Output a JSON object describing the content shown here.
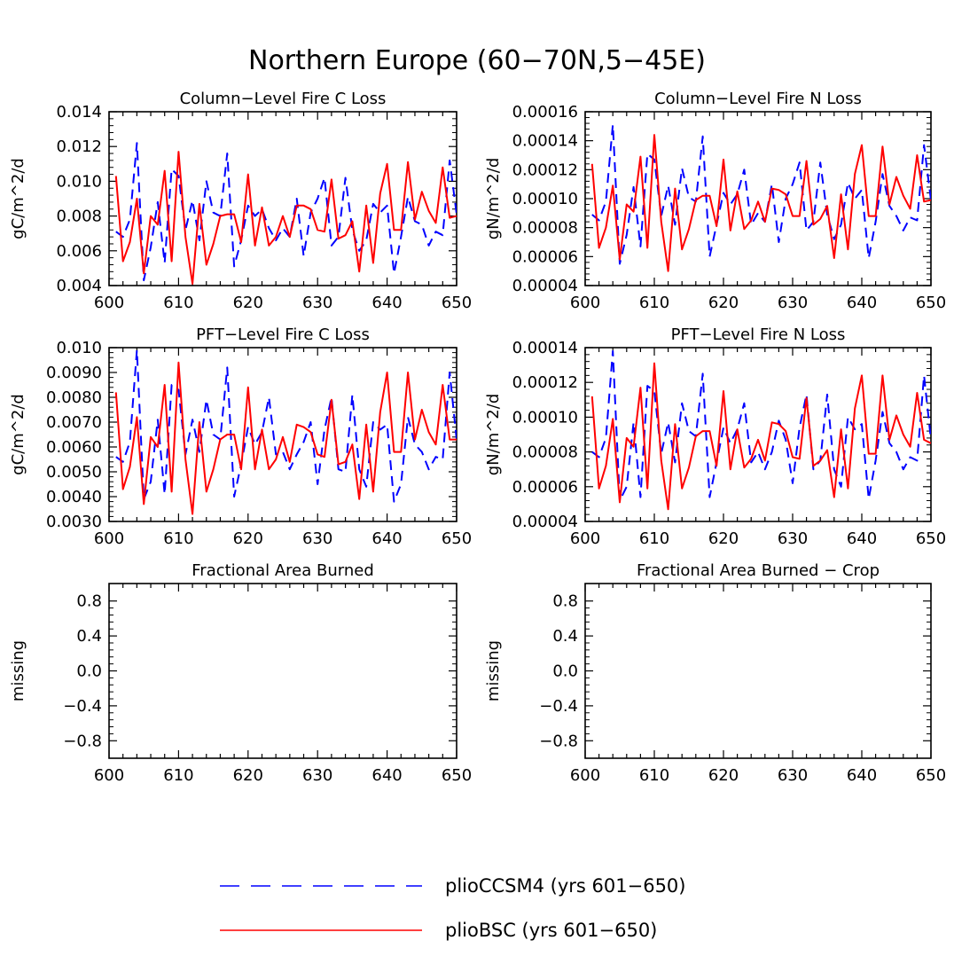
{
  "figure": {
    "title": "Northern Europe (60−70N,5−45E)"
  },
  "series_styles": [
    {
      "name": "plioCCSM4 (yrs 601−650)",
      "color": "#0000ff",
      "dash": "dashed"
    },
    {
      "name": "plioBSC (yrs 601−650)",
      "color": "#ff0000",
      "dash": "solid"
    }
  ],
  "chart_data": [
    {
      "type": "line",
      "title": "Column−Level Fire C Loss",
      "ylabel": "gC/m^2/d",
      "xlim": [
        600,
        650
      ],
      "ylim": [
        0.004,
        0.014
      ],
      "xticks": [
        600,
        610,
        620,
        630,
        640,
        650
      ],
      "yticks": [
        0.004,
        0.006,
        0.008,
        0.01,
        0.012,
        0.014
      ],
      "ytick_labels": [
        "0.004",
        "0.006",
        "0.008",
        "0.010",
        "0.012",
        "0.014"
      ],
      "x": [
        601,
        602,
        603,
        604,
        605,
        606,
        607,
        608,
        609,
        610,
        611,
        612,
        613,
        614,
        615,
        616,
        617,
        618,
        619,
        620,
        621,
        622,
        623,
        624,
        625,
        626,
        627,
        628,
        629,
        630,
        631,
        632,
        633,
        634,
        635,
        636,
        637,
        638,
        639,
        640,
        641,
        642,
        643,
        644,
        645,
        646,
        647,
        648,
        649,
        650
      ],
      "series": [
        {
          "name": "plioCCSM4 (yrs 601−650)",
          "values": [
            0.0071,
            0.0068,
            0.0078,
            0.0122,
            0.0043,
            0.0062,
            0.0088,
            0.0053,
            0.0107,
            0.0103,
            0.0072,
            0.0089,
            0.0066,
            0.01,
            0.0082,
            0.008,
            0.0116,
            0.0051,
            0.0066,
            0.0086,
            0.008,
            0.0084,
            0.0073,
            0.0066,
            0.0073,
            0.0068,
            0.009,
            0.0057,
            0.0082,
            0.009,
            0.0102,
            0.0063,
            0.0068,
            0.0102,
            0.0072,
            0.006,
            0.0066,
            0.0087,
            0.0082,
            0.0086,
            0.0047,
            0.0068,
            0.0091,
            0.0077,
            0.0075,
            0.0063,
            0.0071,
            0.0069,
            0.0112,
            0.0081
          ]
        },
        {
          "name": "plioBSC (yrs 601−650)",
          "values": [
            0.0103,
            0.0054,
            0.0065,
            0.009,
            0.0047,
            0.008,
            0.0075,
            0.0106,
            0.0054,
            0.0117,
            0.0068,
            0.0041,
            0.0087,
            0.0052,
            0.0064,
            0.008,
            0.0081,
            0.0081,
            0.0065,
            0.0104,
            0.0063,
            0.0085,
            0.0063,
            0.0068,
            0.008,
            0.0068,
            0.0086,
            0.0086,
            0.0084,
            0.0072,
            0.0071,
            0.0101,
            0.0067,
            0.0069,
            0.0077,
            0.0048,
            0.0086,
            0.0053,
            0.0093,
            0.011,
            0.0072,
            0.0072,
            0.0111,
            0.0078,
            0.0094,
            0.0083,
            0.0076,
            0.0108,
            0.0079,
            0.008
          ]
        }
      ]
    },
    {
      "type": "line",
      "title": "Column−Level Fire N Loss",
      "ylabel": "gN/m^2/d",
      "xlim": [
        600,
        650
      ],
      "ylim": [
        4e-05,
        0.00016
      ],
      "xticks": [
        600,
        610,
        620,
        630,
        640,
        650
      ],
      "yticks": [
        4e-05,
        6e-05,
        8e-05,
        0.0001,
        0.00012,
        0.00014,
        0.00016
      ],
      "ytick_labels": [
        "0.00004",
        "0.00006",
        "0.00008",
        "0.00010",
        "0.00012",
        "0.00014",
        "0.00016"
      ],
      "x": [
        601,
        602,
        603,
        604,
        605,
        606,
        607,
        608,
        609,
        610,
        611,
        612,
        613,
        614,
        615,
        616,
        617,
        618,
        619,
        620,
        621,
        622,
        623,
        624,
        625,
        626,
        627,
        628,
        629,
        630,
        631,
        632,
        633,
        634,
        635,
        636,
        637,
        638,
        639,
        640,
        641,
        642,
        643,
        644,
        645,
        646,
        647,
        648,
        649,
        650
      ],
      "series": [
        {
          "name": "plioCCSM4 (yrs 601−650)",
          "values": [
            8.9e-05,
            8.5e-05,
            9.8e-05,
            0.000151,
            5.5e-05,
            7.5e-05,
            0.000108,
            6.7e-05,
            0.000131,
            0.000127,
            8.8e-05,
            0.000109,
            8.2e-05,
            0.000121,
            0.000101,
            9.8e-05,
            0.000143,
            6e-05,
            8.2e-05,
            0.000104,
            9.6e-05,
            0.000103,
            0.00012,
            8.2e-05,
            9e-05,
            8.4e-05,
            0.00011,
            7e-05,
            0.0001,
            0.00011,
            0.000125,
            7.8e-05,
            8.4e-05,
            0.000125,
            8.9e-05,
            7.2e-05,
            8.2e-05,
            0.000111,
            0.0001,
            0.000106,
            5.9e-05,
            8.4e-05,
            0.000117,
            9.5e-05,
            8.8e-05,
            7.8e-05,
            8.7e-05,
            8.5e-05,
            0.000137,
            9.9e-05
          ]
        },
        {
          "name": "plioBSC (yrs 601−650)",
          "values": [
            0.000124,
            6.6e-05,
            8e-05,
            0.000109,
            5.8e-05,
            9.6e-05,
            9.1e-05,
            0.000129,
            6.6e-05,
            0.000144,
            8.4e-05,
            5e-05,
            0.000107,
            6.5e-05,
            7.9e-05,
            9.9e-05,
            0.000102,
            0.000102,
            8.1e-05,
            0.000127,
            7.8e-05,
            0.000105,
            7.9e-05,
            8.5e-05,
            9.8e-05,
            8.4e-05,
            0.000107,
            0.000106,
            0.000103,
            8.8e-05,
            8.8e-05,
            0.000126,
            8.2e-05,
            8.6e-05,
            9.5e-05,
            5.9e-05,
            0.000103,
            6.5e-05,
            0.000117,
            0.000137,
            8.8e-05,
            8.8e-05,
            0.000136,
            9.6e-05,
            0.000115,
            0.000102,
            9.3e-05,
            0.00013,
            9.8e-05,
            9.9e-05
          ]
        }
      ]
    },
    {
      "type": "line",
      "title": "PFT−Level Fire C Loss",
      "ylabel": "gC/m^2/d",
      "xlim": [
        600,
        650
      ],
      "ylim": [
        0.003,
        0.01
      ],
      "xticks": [
        600,
        610,
        620,
        630,
        640,
        650
      ],
      "yticks": [
        0.003,
        0.004,
        0.005,
        0.006,
        0.007,
        0.008,
        0.009,
        0.01
      ],
      "ytick_labels": [
        "0.0030",
        "0.0040",
        "0.0050",
        "0.0060",
        "0.0070",
        "0.0080",
        "0.0090",
        "0.010"
      ],
      "x": [
        601,
        602,
        603,
        604,
        605,
        606,
        607,
        608,
        609,
        610,
        611,
        612,
        613,
        614,
        615,
        616,
        617,
        618,
        619,
        620,
        621,
        622,
        623,
        624,
        625,
        626,
        627,
        628,
        629,
        630,
        631,
        632,
        633,
        634,
        635,
        636,
        637,
        638,
        639,
        640,
        641,
        642,
        643,
        644,
        645,
        646,
        647,
        648,
        649,
        650
      ],
      "series": [
        {
          "name": "plioCCSM4 (yrs 601−650)",
          "values": [
            0.0056,
            0.0054,
            0.0062,
            0.0099,
            0.0039,
            0.0046,
            0.0071,
            0.0041,
            0.0085,
            0.0083,
            0.0057,
            0.0071,
            0.0058,
            0.0079,
            0.0065,
            0.0063,
            0.0092,
            0.004,
            0.0053,
            0.0068,
            0.0061,
            0.0066,
            0.008,
            0.0057,
            0.0058,
            0.0051,
            0.0057,
            0.0062,
            0.007,
            0.0045,
            0.0067,
            0.008,
            0.0051,
            0.005,
            0.0081,
            0.0051,
            0.0044,
            0.007,
            0.0067,
            0.0069,
            0.0038,
            0.0045,
            0.0072,
            0.0061,
            0.0058,
            0.0051,
            0.0056,
            0.0055,
            0.009,
            0.0063
          ]
        },
        {
          "name": "plioBSC (yrs 601−650)",
          "values": [
            0.0082,
            0.0043,
            0.0052,
            0.0072,
            0.0037,
            0.0064,
            0.006,
            0.0085,
            0.0042,
            0.0094,
            0.0055,
            0.0033,
            0.007,
            0.0042,
            0.0051,
            0.0063,
            0.0065,
            0.0065,
            0.0051,
            0.0084,
            0.0051,
            0.0067,
            0.0051,
            0.0055,
            0.0064,
            0.0054,
            0.0069,
            0.0068,
            0.0066,
            0.0057,
            0.0056,
            0.0079,
            0.0053,
            0.0054,
            0.0061,
            0.0039,
            0.0069,
            0.0042,
            0.0074,
            0.009,
            0.0058,
            0.0058,
            0.009,
            0.0063,
            0.0075,
            0.0066,
            0.0061,
            0.0085,
            0.0063,
            0.0063
          ]
        }
      ]
    },
    {
      "type": "line",
      "title": "PFT−Level Fire N Loss",
      "ylabel": "gN/m^2/d",
      "xlim": [
        600,
        650
      ],
      "ylim": [
        4e-05,
        0.00014
      ],
      "xticks": [
        600,
        610,
        620,
        630,
        640,
        650
      ],
      "yticks": [
        4e-05,
        6e-05,
        8e-05,
        0.0001,
        0.00012,
        0.00014
      ],
      "ytick_labels": [
        "0.00004",
        "0.00006",
        "0.00008",
        "0.00010",
        "0.00012",
        "0.00014"
      ],
      "x": [
        601,
        602,
        603,
        604,
        605,
        606,
        607,
        608,
        609,
        610,
        611,
        612,
        613,
        614,
        615,
        616,
        617,
        618,
        619,
        620,
        621,
        622,
        623,
        624,
        625,
        626,
        627,
        628,
        629,
        630,
        631,
        632,
        633,
        634,
        635,
        636,
        637,
        638,
        639,
        640,
        641,
        642,
        643,
        644,
        645,
        646,
        647,
        648,
        649,
        650
      ],
      "series": [
        {
          "name": "plioCCSM4 (yrs 601−650)",
          "values": [
            8e-05,
            7.7e-05,
            8.8e-05,
            0.000138,
            5.2e-05,
            6e-05,
            9.7e-05,
            5.4e-05,
            0.000118,
            0.000115,
            7.9e-05,
            9.7e-05,
            7.4e-05,
            0.000108,
            9.2e-05,
            8.9e-05,
            0.000125,
            5.4e-05,
            7.4e-05,
            9.4e-05,
            8.5e-05,
            9.3e-05,
            0.000108,
            7.4e-05,
            8e-05,
            7e-05,
            8e-05,
            9.8e-05,
            8.7e-05,
            6.2e-05,
            9.4e-05,
            0.000113,
            7e-05,
            7.5e-05,
            0.000113,
            7e-05,
            6e-05,
            0.0001,
            9.3e-05,
            9.6e-05,
            5.3e-05,
            7.5e-05,
            0.000103,
            8.5e-05,
            8e-05,
            7e-05,
            7.7e-05,
            7.5e-05,
            0.000124,
            8.7e-05
          ]
        },
        {
          "name": "plioBSC (yrs 601−650)",
          "values": [
            0.000112,
            5.9e-05,
            7.2e-05,
            9.9e-05,
            5.1e-05,
            8.8e-05,
            8.3e-05,
            0.000117,
            5.9e-05,
            0.000131,
            7.5e-05,
            4.7e-05,
            9.6e-05,
            5.9e-05,
            7.1e-05,
            8.9e-05,
            9.2e-05,
            9.2e-05,
            7.2e-05,
            0.000115,
            7e-05,
            9.3e-05,
            7.1e-05,
            7.6e-05,
            8.7e-05,
            7.5e-05,
            9.7e-05,
            9.6e-05,
            9.2e-05,
            7.7e-05,
            7.6e-05,
            0.000111,
            7.2e-05,
            7.5e-05,
            8.1e-05,
            5.4e-05,
            9.3e-05,
            5.9e-05,
            0.000105,
            0.000124,
            7.9e-05,
            7.9e-05,
            0.000124,
            8.7e-05,
            0.000101,
            9e-05,
            8.3e-05,
            0.000114,
            8.7e-05,
            8.5e-05
          ]
        }
      ]
    },
    {
      "type": "line",
      "title": "Fractional Area Burned",
      "ylabel": "missing",
      "xlim": [
        600,
        650
      ],
      "ylim": [
        -1.0,
        1.0
      ],
      "xticks": [
        600,
        610,
        620,
        630,
        640,
        650
      ],
      "yticks": [
        -0.8,
        -0.4,
        0.0,
        0.4,
        0.8
      ],
      "ytick_labels": [
        "−0.8",
        "−0.4",
        "0.0",
        "0.4",
        "0.8"
      ],
      "x": [],
      "series": []
    },
    {
      "type": "line",
      "title": "Fractional Area Burned − Crop",
      "ylabel": "missing",
      "xlim": [
        600,
        650
      ],
      "ylim": [
        -1.0,
        1.0
      ],
      "xticks": [
        600,
        610,
        620,
        630,
        640,
        650
      ],
      "yticks": [
        -0.8,
        -0.4,
        0.0,
        0.4,
        0.8
      ],
      "ytick_labels": [
        "−0.8",
        "−0.4",
        "0.0",
        "0.4",
        "0.8"
      ],
      "x": [],
      "series": []
    }
  ]
}
